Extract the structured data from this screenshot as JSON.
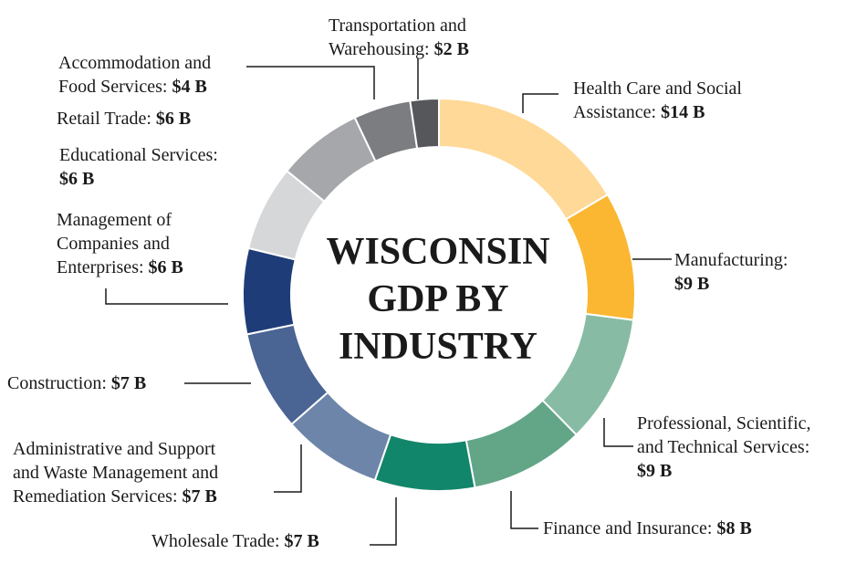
{
  "chart_data": {
    "type": "pie",
    "style": "donut",
    "title": "WISCONSIN GDP BY INDUSTRY",
    "unit": "B",
    "slices": [
      {
        "name": "Health Care and Social Assistance",
        "value": 14,
        "value_label": "$14 B",
        "color": "#FFD998"
      },
      {
        "name": "Manufacturing",
        "value": 9,
        "value_label": "$9 B",
        "color": "#FBB732"
      },
      {
        "name": "Professional, Scientific, and Technical Services",
        "value": 9,
        "value_label": "$9 B",
        "color": "#88BBA4"
      },
      {
        "name": "Finance and Insurance",
        "value": 8,
        "value_label": "$8 B",
        "color": "#62A587"
      },
      {
        "name": "Wholesale Trade",
        "value": 7,
        "value_label": "$7 B",
        "color": "#12866A"
      },
      {
        "name": "Administrative and Support and Waste Management and Remediation Services",
        "value": 7,
        "value_label": "$7 B",
        "color": "#6E85AA"
      },
      {
        "name": "Construction",
        "value": 7,
        "value_label": "$7 B",
        "color": "#4A6494"
      },
      {
        "name": "Management of Companies and Enterprises",
        "value": 6,
        "value_label": "$6 B",
        "color": "#1E3D78"
      },
      {
        "name": "Educational Services",
        "value": 6,
        "value_label": "$6 B",
        "color": "#D6D7D9"
      },
      {
        "name": "Retail Trade",
        "value": 6,
        "value_label": "$6 B",
        "color": "#A6A7AA"
      },
      {
        "name": "Accommodation and Food Services",
        "value": 4,
        "value_label": "$4 B",
        "color": "#7C7D80"
      },
      {
        "name": "Transportation and Warehousing",
        "value": 2,
        "value_label": "$2 B",
        "color": "#56575A"
      }
    ]
  },
  "labels": {
    "health_l1": "Health Care and Social",
    "health_l2": "Assistance:",
    "manufacturing_l1": "Manufacturing:",
    "professional_l1": "Professional, Scientific,",
    "professional_l2": "and Technical Services:",
    "finance_l1": "Finance and Insurance:",
    "wholesale_l1": "Wholesale Trade:",
    "admin_l1": "Administrative and Support",
    "admin_l2": "and Waste Management and",
    "admin_l3": "Remediation Services:",
    "construction_l1": "Construction:",
    "management_l1": "Management of",
    "management_l2": "Companies and",
    "management_l3": "Enterprises:",
    "educational_l1": "Educational Services:",
    "retail_l1": "Retail Trade:",
    "accommodation_l1": "Accommodation and",
    "accommodation_l2": "Food Services:",
    "transport_l1": "Transportation and",
    "transport_l2": "Warehousing:"
  },
  "center": {
    "line1": "WISCONSIN",
    "line2": "GDP BY",
    "line3": "INDUSTRY"
  }
}
